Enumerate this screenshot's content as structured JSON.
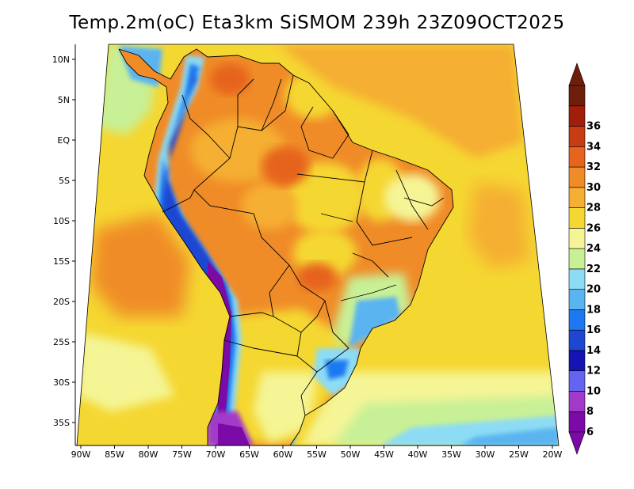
{
  "title": "Temp.2m(oC) Eta3km SiSMOM 239h 23Z09OCT2025",
  "map": {
    "latitude_labels": [
      "10N",
      "5N",
      "EQ",
      "5S",
      "10S",
      "15S",
      "20S",
      "25S",
      "30S",
      "35S"
    ],
    "longitude_labels": [
      "90W",
      "85W",
      "80W",
      "75W",
      "70W",
      "65W",
      "60W",
      "55W",
      "50W",
      "45W",
      "40W",
      "35W",
      "30W",
      "25W",
      "20W"
    ],
    "field": "2 m air temperature (°C)"
  },
  "colorbar": {
    "levels": [
      "6",
      "8",
      "10",
      "12",
      "14",
      "16",
      "18",
      "20",
      "22",
      "24",
      "26",
      "28",
      "30",
      "32",
      "34",
      "36"
    ],
    "colors": [
      "#7b0aa6",
      "#a23ac9",
      "#6464f0",
      "#1414b4",
      "#1e46d2",
      "#1e78f0",
      "#5ab4f0",
      "#8cdcf5",
      "#c8f096",
      "#f5f596",
      "#f5d732",
      "#f5af32",
      "#f08c28",
      "#e6641e",
      "#c83c14",
      "#a01e0a",
      "#6e1e0a"
    ],
    "arrow_low_color": "#7b0aa6",
    "arrow_high_color": "#6e1e0a"
  }
}
